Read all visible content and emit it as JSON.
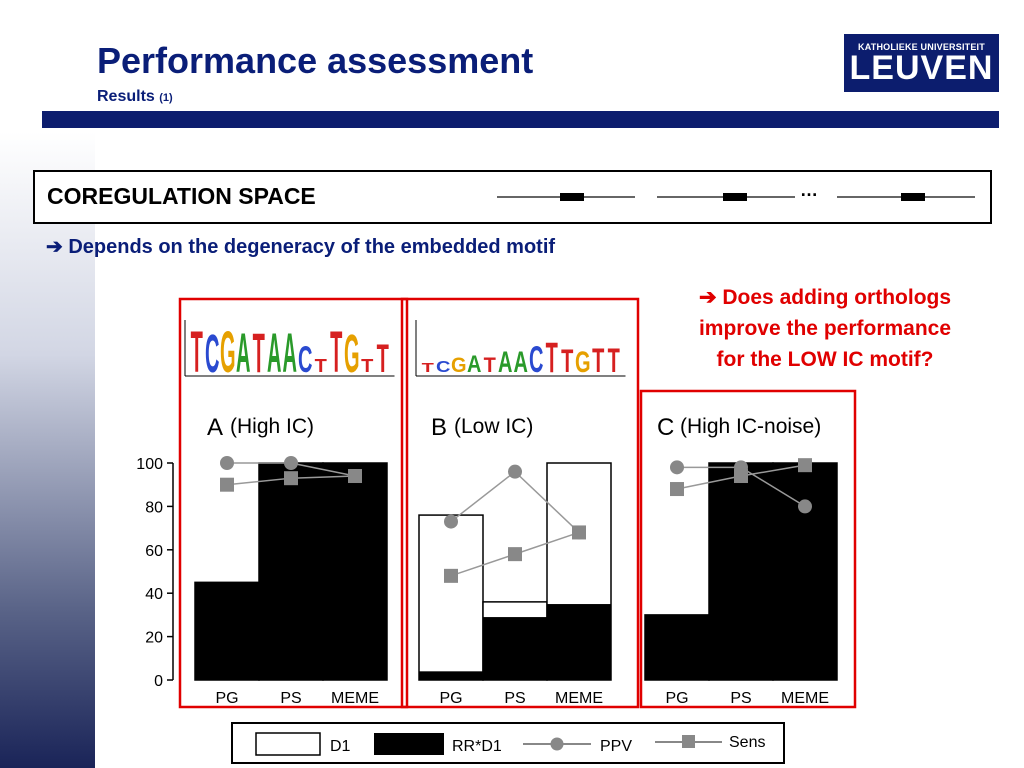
{
  "header": {
    "title": "Performance assessment",
    "subtitle": "Results",
    "subtitle_suffix": "(1)",
    "logo_small": "KATHOLIEKE UNIVERSITEIT",
    "logo_big": "LEUVEN"
  },
  "coregulation": {
    "label": "COREGULATION SPACE",
    "dots": "…"
  },
  "statement": "➔ Depends on the degeneracy of the embedded motif",
  "question_lines": [
    "➔ Does adding orthologs",
    "improve the performance",
    "for the LOW IC motif?"
  ],
  "logos": {
    "A": [
      "T",
      "C",
      "G",
      "A",
      "T",
      "A",
      "A",
      "C",
      "T",
      "T",
      "G",
      "T",
      "T"
    ],
    "B": [
      "T",
      "C",
      "G",
      "A",
      "T",
      "A",
      "A",
      "C",
      "T",
      "T",
      "G",
      "T",
      "T"
    ]
  },
  "legend": {
    "d1": "D1",
    "rr": "RR*D1",
    "ppv": "PPV",
    "sens": "Sens"
  },
  "colors": {
    "title": "#0a1e78",
    "navy": "#0c1d6e",
    "highlight": "#e00000",
    "marker": "#888888"
  },
  "chart_data": {
    "type": "bar",
    "categories": [
      "PG",
      "PS",
      "MEME"
    ],
    "ylim": [
      0,
      100
    ],
    "yticks": [
      0,
      20,
      40,
      60,
      80,
      100
    ],
    "panels": [
      {
        "letter": "A",
        "title": "(High IC)",
        "D1": [
          45,
          100,
          100
        ],
        "RR_D1": [
          45,
          100,
          100
        ],
        "PPV": [
          100,
          100,
          94
        ],
        "Sens": [
          90,
          93,
          94
        ]
      },
      {
        "letter": "B",
        "title": "(Low IC)",
        "D1": [
          76,
          36,
          100
        ],
        "RR_D1": [
          4,
          29,
          35
        ],
        "PPV": [
          73,
          96,
          68
        ],
        "Sens": [
          48,
          58,
          68
        ]
      },
      {
        "letter": "C",
        "title": "(High IC-noise)",
        "D1": [
          30,
          100,
          100
        ],
        "RR_D1": [
          30,
          100,
          100
        ],
        "PPV": [
          98,
          98,
          80
        ],
        "Sens": [
          88,
          94,
          99
        ]
      }
    ]
  }
}
